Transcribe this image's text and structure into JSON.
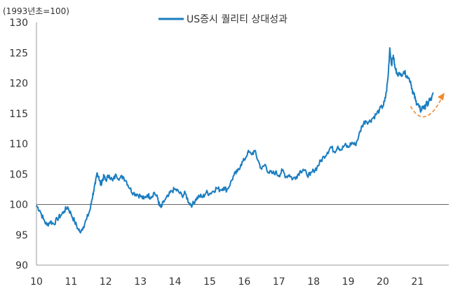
{
  "chart_data": {
    "type": "line",
    "unit_label": "(1993년초=100)",
    "series": [
      {
        "name": "US증시 퀄리티 상대성과",
        "color": "#1a7dc0",
        "points": [
          [
            2010.0,
            99.8
          ],
          [
            2010.1,
            99.0
          ],
          [
            2010.2,
            97.6
          ],
          [
            2010.3,
            96.6
          ],
          [
            2010.4,
            97.2
          ],
          [
            2010.5,
            96.8
          ],
          [
            2010.6,
            97.6
          ],
          [
            2010.7,
            98.2
          ],
          [
            2010.8,
            98.9
          ],
          [
            2010.9,
            99.6
          ],
          [
            2011.0,
            98.4
          ],
          [
            2011.1,
            97.2
          ],
          [
            2011.2,
            96.0
          ],
          [
            2011.25,
            95.5
          ],
          [
            2011.35,
            96.3
          ],
          [
            2011.45,
            97.6
          ],
          [
            2011.55,
            99.2
          ],
          [
            2011.6,
            100.8
          ],
          [
            2011.65,
            102.2
          ],
          [
            2011.7,
            103.4
          ],
          [
            2011.75,
            105.2
          ],
          [
            2011.8,
            104.6
          ],
          [
            2011.85,
            103.2
          ],
          [
            2011.9,
            104.0
          ],
          [
            2011.95,
            104.6
          ],
          [
            2012.0,
            104.0
          ],
          [
            2012.1,
            104.8
          ],
          [
            2012.2,
            103.9
          ],
          [
            2012.3,
            104.9
          ],
          [
            2012.4,
            104.3
          ],
          [
            2012.5,
            104.6
          ],
          [
            2012.6,
            103.8
          ],
          [
            2012.7,
            102.6
          ],
          [
            2012.8,
            101.9
          ],
          [
            2012.9,
            101.7
          ],
          [
            2013.0,
            101.4
          ],
          [
            2013.1,
            100.9
          ],
          [
            2013.2,
            101.6
          ],
          [
            2013.3,
            101.2
          ],
          [
            2013.4,
            102.0
          ],
          [
            2013.5,
            101.0
          ],
          [
            2013.55,
            99.8
          ],
          [
            2013.6,
            99.5
          ],
          [
            2013.7,
            100.7
          ],
          [
            2013.8,
            101.3
          ],
          [
            2013.9,
            102.2
          ],
          [
            2014.0,
            102.5
          ],
          [
            2014.1,
            102.1
          ],
          [
            2014.2,
            101.5
          ],
          [
            2014.3,
            101.8
          ],
          [
            2014.4,
            100.3
          ],
          [
            2014.5,
            99.9
          ],
          [
            2014.6,
            100.9
          ],
          [
            2014.7,
            101.4
          ],
          [
            2014.8,
            101.2
          ],
          [
            2014.9,
            102.0
          ],
          [
            2015.0,
            101.8
          ],
          [
            2015.1,
            102.2
          ],
          [
            2015.2,
            102.7
          ],
          [
            2015.3,
            102.4
          ],
          [
            2015.4,
            102.8
          ],
          [
            2015.5,
            102.4
          ],
          [
            2015.6,
            103.5
          ],
          [
            2015.7,
            104.8
          ],
          [
            2015.8,
            105.4
          ],
          [
            2015.9,
            106.6
          ],
          [
            2016.0,
            107.3
          ],
          [
            2016.1,
            108.6
          ],
          [
            2016.2,
            108.3
          ],
          [
            2016.3,
            108.8
          ],
          [
            2016.4,
            107.2
          ],
          [
            2016.5,
            105.8
          ],
          [
            2016.6,
            106.6
          ],
          [
            2016.7,
            105.3
          ],
          [
            2016.8,
            105.1
          ],
          [
            2016.9,
            105.3
          ],
          [
            2017.0,
            104.8
          ],
          [
            2017.1,
            105.6
          ],
          [
            2017.2,
            104.6
          ],
          [
            2017.3,
            104.9
          ],
          [
            2017.4,
            104.2
          ],
          [
            2017.5,
            104.6
          ],
          [
            2017.6,
            105.4
          ],
          [
            2017.7,
            105.8
          ],
          [
            2017.8,
            105.0
          ],
          [
            2017.9,
            104.8
          ],
          [
            2018.0,
            105.6
          ],
          [
            2018.1,
            106.1
          ],
          [
            2018.2,
            107.1
          ],
          [
            2018.3,
            107.9
          ],
          [
            2018.4,
            108.6
          ],
          [
            2018.5,
            109.5
          ],
          [
            2018.6,
            108.7
          ],
          [
            2018.7,
            109.6
          ],
          [
            2018.8,
            109.0
          ],
          [
            2018.9,
            109.8
          ],
          [
            2019.0,
            109.4
          ],
          [
            2019.1,
            110.2
          ],
          [
            2019.2,
            109.8
          ],
          [
            2019.3,
            111.2
          ],
          [
            2019.4,
            113.0
          ],
          [
            2019.5,
            113.8
          ],
          [
            2019.6,
            113.6
          ],
          [
            2019.7,
            114.2
          ],
          [
            2019.8,
            114.8
          ],
          [
            2019.9,
            115.6
          ],
          [
            2020.0,
            116.2
          ],
          [
            2020.05,
            117.0
          ],
          [
            2020.1,
            118.5
          ],
          [
            2020.15,
            121.0
          ],
          [
            2020.2,
            125.8
          ],
          [
            2020.25,
            123.0
          ],
          [
            2020.3,
            124.6
          ],
          [
            2020.35,
            122.5
          ],
          [
            2020.4,
            121.8
          ],
          [
            2020.5,
            121.3
          ],
          [
            2020.6,
            121.9
          ],
          [
            2020.7,
            121.2
          ],
          [
            2020.8,
            120.3
          ],
          [
            2020.85,
            118.8
          ],
          [
            2020.9,
            118.1
          ],
          [
            2020.95,
            117.0
          ],
          [
            2021.0,
            116.6
          ],
          [
            2021.05,
            116.0
          ],
          [
            2021.1,
            115.4
          ],
          [
            2021.15,
            116.2
          ],
          [
            2021.2,
            115.8
          ],
          [
            2021.25,
            116.7
          ],
          [
            2021.3,
            116.4
          ],
          [
            2021.35,
            117.4
          ],
          [
            2021.4,
            117.2
          ],
          [
            2021.45,
            118.4
          ]
        ]
      }
    ],
    "x_ticks": [
      "10",
      "11",
      "12",
      "13",
      "14",
      "15",
      "16",
      "17",
      "18",
      "19",
      "20",
      "21"
    ],
    "y_ticks": [
      "90",
      "95",
      "100",
      "105",
      "110",
      "115",
      "120",
      "125",
      "130"
    ],
    "x_range": [
      2010,
      2021.9
    ],
    "y_range": [
      90,
      130
    ],
    "baseline": 100,
    "grid": false,
    "legend_position": "top-center",
    "annotation": {
      "type": "dashed-arrow",
      "color": "#f08a2e",
      "path_points": [
        [
          2020.8,
          116.2
        ],
        [
          2021.1,
          113.0
        ],
        [
          2021.45,
          114.6
        ],
        [
          2021.7,
          117.6
        ]
      ]
    }
  }
}
